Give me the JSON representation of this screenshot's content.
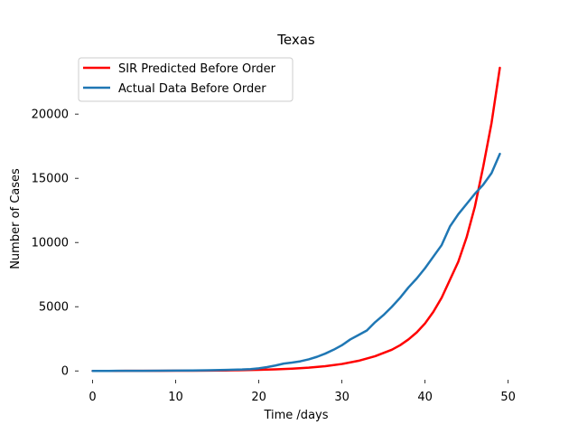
{
  "chart_data": {
    "type": "line",
    "title": "Texas",
    "xlabel": "Time /days",
    "ylabel": "Number of Cases",
    "xlim": [
      -2.45,
      51.45
    ],
    "ylim": [
      -1180,
      24800
    ],
    "xticks": [
      "0",
      "10",
      "20",
      "30",
      "40",
      "50"
    ],
    "yticks": [
      "0",
      "5000",
      "10000",
      "15000",
      "20000"
    ],
    "grid": false,
    "legend_position": "top-left",
    "series": [
      {
        "name": "SIR Predicted Before Order",
        "color": "#ff0000",
        "x": [
          0,
          2,
          4,
          6,
          8,
          10,
          12,
          14,
          16,
          18,
          20,
          22,
          24,
          26,
          28,
          30,
          32,
          34,
          36,
          37,
          38,
          39,
          40,
          41,
          42,
          43,
          44,
          45,
          46,
          47,
          48,
          49
        ],
        "y": [
          0,
          2,
          4,
          6,
          9,
          13,
          18,
          27,
          39,
          57,
          83,
          120,
          175,
          255,
          370,
          540,
          790,
          1150,
          1650,
          2000,
          2450,
          3000,
          3700,
          4600,
          5700,
          7100,
          8500,
          10400,
          12800,
          15900,
          19300,
          23600
        ]
      },
      {
        "name": "Actual Data Before Order",
        "color": "#1f77b4",
        "x": [
          0,
          2,
          4,
          6,
          8,
          10,
          12,
          14,
          16,
          18,
          19,
          20,
          21,
          22,
          23,
          24,
          25,
          26,
          27,
          28,
          29,
          30,
          31,
          32,
          33,
          34,
          35,
          36,
          37,
          38,
          39,
          40,
          41,
          42,
          43,
          44,
          45,
          46,
          47,
          48,
          49
        ],
        "y": [
          0,
          3,
          6,
          10,
          17,
          25,
          38,
          55,
          80,
          110,
          140,
          200,
          300,
          420,
          570,
          650,
          750,
          900,
          1100,
          1350,
          1650,
          2000,
          2450,
          2800,
          3150,
          3800,
          4350,
          4990,
          5700,
          6500,
          7200,
          8000,
          8900,
          9800,
          11250,
          12200,
          13000,
          13800,
          14500,
          15400,
          16900
        ]
      }
    ]
  }
}
